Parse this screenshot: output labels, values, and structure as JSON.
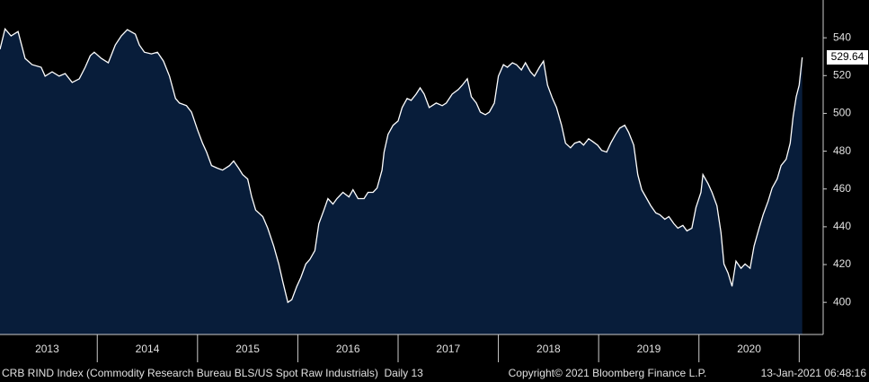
{
  "chart_data": {
    "type": "area",
    "series": [
      {
        "name": "CRB RIND Index",
        "color": "#ffffff",
        "fill": "#081d3a",
        "x": [
          2013.03,
          2013.08,
          2013.14,
          2013.21,
          2013.28,
          2013.35,
          2013.44,
          2013.48,
          2013.55,
          2013.62,
          2013.68,
          2013.75,
          2013.82,
          2013.88,
          2013.93,
          2013.97,
          2014.04,
          2014.11,
          2014.18,
          2014.24,
          2014.3,
          2014.38,
          2014.42,
          2014.47,
          2014.54,
          2014.6,
          2014.66,
          2014.72,
          2014.78,
          2014.82,
          2014.89,
          2014.94,
          2015.0,
          2015.05,
          2015.09,
          2015.14,
          2015.2,
          2015.25,
          2015.32,
          2015.36,
          2015.41,
          2015.45,
          2015.5,
          2015.54,
          2015.58,
          2015.65,
          2015.7,
          2015.76,
          2015.81,
          2015.85,
          2015.9,
          2015.94,
          2015.99,
          2016.03,
          2016.08,
          2016.12,
          2016.17,
          2016.21,
          2016.26,
          2016.3,
          2016.35,
          2016.39,
          2016.45,
          2016.51,
          2016.55,
          2016.6,
          2016.66,
          2016.7,
          2016.75,
          2016.79,
          2016.84,
          2016.86,
          2016.9,
          2016.95,
          2017.0,
          2017.04,
          2017.09,
          2017.13,
          2017.18,
          2017.22,
          2017.26,
          2017.31,
          2017.38,
          2017.44,
          2017.48,
          2017.54,
          2017.6,
          2017.64,
          2017.69,
          2017.73,
          2017.78,
          2017.82,
          2017.87,
          2017.91,
          2017.96,
          2018.0,
          2018.05,
          2018.09,
          2018.14,
          2018.18,
          2018.23,
          2018.27,
          2018.32,
          2018.36,
          2018.41,
          2018.45,
          2018.49,
          2018.54,
          2018.58,
          2018.63,
          2018.67,
          2018.72,
          2018.76,
          2018.81,
          2018.85,
          2018.9,
          2018.94,
          2018.99,
          2019.03,
          2019.08,
          2019.12,
          2019.17,
          2019.21,
          2019.26,
          2019.3,
          2019.35,
          2019.39,
          2019.43,
          2019.48,
          2019.52,
          2019.57,
          2019.61,
          2019.66,
          2019.7,
          2019.75,
          2019.79,
          2019.84,
          2019.88,
          2019.93,
          2019.97,
          2020.02,
          2020.04,
          2020.09,
          2020.13,
          2020.18,
          2020.22,
          2020.25,
          2020.29,
          2020.33,
          2020.37,
          2020.42,
          2020.46,
          2020.51,
          2020.55,
          2020.6,
          2020.64,
          2020.69,
          2020.73,
          2020.78,
          2020.82,
          2020.87,
          2020.91,
          2020.94,
          2020.97,
          2021.0,
          2021.03
        ],
        "values": [
          533.9,
          544.7,
          541.0,
          543.3,
          529.1,
          525.8,
          524.4,
          519.7,
          522.0,
          519.7,
          521.1,
          516.4,
          518.3,
          524.4,
          530.5,
          532.4,
          529.1,
          526.8,
          536.2,
          541.0,
          544.3,
          541.9,
          536.2,
          532.4,
          531.5,
          532.4,
          527.7,
          519.7,
          507.9,
          505.5,
          504.1,
          500.7,
          491.3,
          484.2,
          479.5,
          472.4,
          471.0,
          470.0,
          472.4,
          474.8,
          471.0,
          467.6,
          465.3,
          455.8,
          448.8,
          445.4,
          439.3,
          429.8,
          420.3,
          410.9,
          400.0,
          401.4,
          408.5,
          413.2,
          420.3,
          422.7,
          427.4,
          441.6,
          448.8,
          454.9,
          452.0,
          454.9,
          458.2,
          455.8,
          459.6,
          454.9,
          454.9,
          458.2,
          458.2,
          460.5,
          470.0,
          479.5,
          488.9,
          493.7,
          496.0,
          503.1,
          507.9,
          506.9,
          510.2,
          513.5,
          510.2,
          503.1,
          505.5,
          504.1,
          505.5,
          510.2,
          512.6,
          514.9,
          518.3,
          508.8,
          505.5,
          500.7,
          499.3,
          500.7,
          505.5,
          519.7,
          525.8,
          524.4,
          526.8,
          525.8,
          523.0,
          526.8,
          522.0,
          519.7,
          524.4,
          527.7,
          514.9,
          507.9,
          503.1,
          493.7,
          484.2,
          481.8,
          484.2,
          485.1,
          483.2,
          486.6,
          485.1,
          483.2,
          480.4,
          479.5,
          484.2,
          488.9,
          492.2,
          493.7,
          489.9,
          483.2,
          467.6,
          459.6,
          454.9,
          451.1,
          447.3,
          446.4,
          444.0,
          445.4,
          441.6,
          439.3,
          440.7,
          437.8,
          439.3,
          450.1,
          458.2,
          467.6,
          462.9,
          458.2,
          451.1,
          436.9,
          420.3,
          415.6,
          408.5,
          421.8,
          418.0,
          420.3,
          418.0,
          429.8,
          439.3,
          446.4,
          453.4,
          460.5,
          465.3,
          472.4,
          475.7,
          484.2,
          498.4,
          508.8,
          514.9,
          529.64
        ]
      }
    ],
    "xlim": [
      2013.03,
      2021.23
    ],
    "xticks": [
      2014,
      2015,
      2016,
      2017,
      2018,
      2019,
      2020,
      2021
    ],
    "xtick_labels": [
      {
        "value": 2013.5,
        "label": "2013"
      },
      {
        "value": 2014.5,
        "label": "2014"
      },
      {
        "value": 2015.5,
        "label": "2015"
      },
      {
        "value": 2016.5,
        "label": "2016"
      },
      {
        "value": 2017.5,
        "label": "2017"
      },
      {
        "value": 2018.5,
        "label": "2018"
      },
      {
        "value": 2019.5,
        "label": "2019"
      },
      {
        "value": 2020.5,
        "label": "2020"
      }
    ],
    "ylim": [
      383,
      560
    ],
    "yticks": [
      400,
      420,
      440,
      460,
      480,
      500,
      520,
      540
    ],
    "footer_left": "CRB RIND Index (Commodity Research Bureau BLS/US Spot Raw Industrials)  Daily 13",
    "copyright": "Copyright© 2021 Bloomberg Finance L.P.",
    "timestamp": "13-Jan-2021 06:48:16"
  }
}
